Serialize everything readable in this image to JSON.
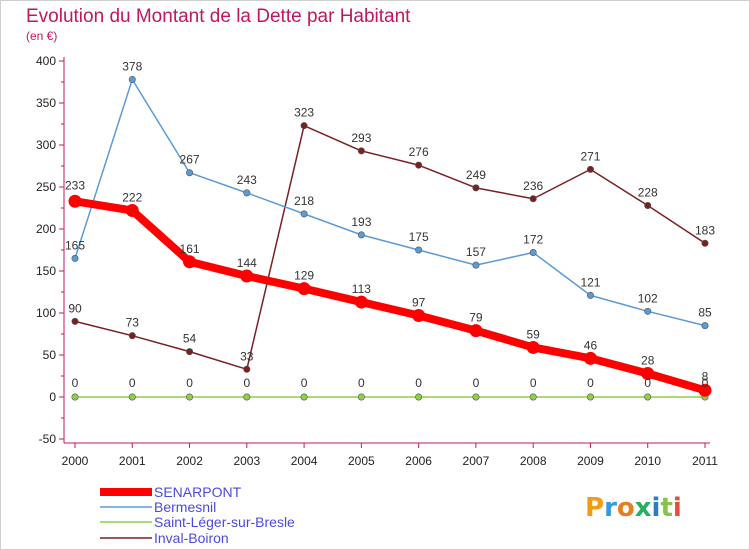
{
  "chart_data": {
    "type": "line",
    "title": "Evolution du Montant de la Dette par Habitant",
    "subtitle": "(en €)",
    "x": [
      "2000",
      "2001",
      "2002",
      "2003",
      "2004",
      "2005",
      "2006",
      "2007",
      "2008",
      "2009",
      "2010",
      "2011"
    ],
    "y_ticks": [
      "400",
      "350",
      "300",
      "250",
      "200",
      "150",
      "100",
      "50",
      "0",
      "-50"
    ],
    "ylim": [
      -50,
      400
    ],
    "grid": false,
    "legend_position": "bottom-left",
    "series": [
      {
        "name": "SENARPONT",
        "color": "#ff0000",
        "values": [
          233,
          222,
          161,
          144,
          129,
          113,
          97,
          79,
          59,
          46,
          28,
          8
        ],
        "labels": [
          "233",
          "222",
          "161",
          "144",
          "129",
          "113",
          "97",
          "79",
          "59",
          "46",
          "28",
          "8"
        ]
      },
      {
        "name": "Bermesnil",
        "color": "#5b9bd5",
        "values": [
          165,
          378,
          267,
          243,
          218,
          193,
          175,
          157,
          172,
          121,
          102,
          85
        ],
        "labels": [
          "165",
          "378",
          "267",
          "243",
          "218",
          "193",
          "175",
          "157",
          "172",
          "121",
          "102",
          "85"
        ]
      },
      {
        "name": "Saint-Léger-sur-Bresle",
        "color": "#8bd14a",
        "values": [
          0,
          0,
          0,
          0,
          0,
          0,
          0,
          0,
          0,
          0,
          0,
          0
        ],
        "labels": [
          "0",
          "0",
          "0",
          "0",
          "0",
          "0",
          "0",
          "0",
          "0",
          "0",
          "0",
          "0"
        ]
      },
      {
        "name": "Inval-Boiron",
        "color": "#7a2020",
        "segments": [
          {
            "values": [
              90,
              73,
              54,
              33,
              323,
              293,
              276,
              249,
              236,
              271,
              228,
              183
            ]
          }
        ],
        "values": [
          90,
          73,
          54,
          33,
          323,
          293,
          276,
          249,
          236,
          271,
          228,
          183
        ],
        "labels": [
          "90",
          "73",
          "54",
          "33",
          "323",
          "293",
          "276",
          "249",
          "236",
          "271",
          "228",
          "183"
        ]
      }
    ]
  },
  "logo": {
    "text": "Proxiti"
  }
}
